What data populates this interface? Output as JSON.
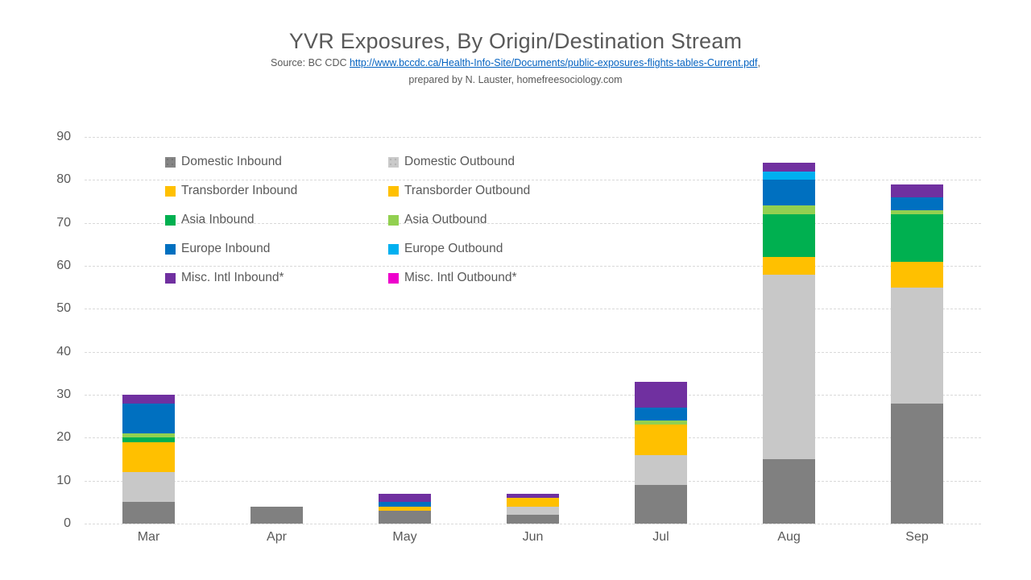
{
  "header": {
    "title": "YVR Exposures, By Origin/Destination Stream",
    "source_prefix": "Source:  BC CDC ",
    "source_link_text": "http://www.bccdc.ca/Health-Info-Site/Documents/public-exposures-flights-tables-Current.pdf",
    "source_suffix": ",",
    "prepared_line": "prepared by N. Lauster, homefreesociology.com"
  },
  "colors": {
    "text_gray": "#595959",
    "link_blue": "#0563C1",
    "gridline": "#D9D9D9",
    "background": "#FFFFFF"
  },
  "chart_data": {
    "type": "bar",
    "stacked": true,
    "title": "YVR Exposures, By Origin/Destination Stream",
    "xlabel": "",
    "ylabel": "",
    "ylim": [
      0,
      90
    ],
    "yticks": [
      0,
      10,
      20,
      30,
      40,
      50,
      60,
      70,
      80,
      90
    ],
    "grid": true,
    "legend_position": "top-left-inside",
    "legend_columns": 2,
    "categories": [
      "Mar",
      "Apr",
      "May",
      "Jun",
      "Jul",
      "Aug",
      "Sep"
    ],
    "series": [
      {
        "name": "Domestic Inbound",
        "color": "#808080",
        "pattern": "dots",
        "values": [
          5,
          4,
          3,
          2,
          9,
          15,
          28
        ]
      },
      {
        "name": "Domestic Outbound",
        "color": "#C8C8C8",
        "pattern": "dots",
        "values": [
          7,
          0,
          0,
          2,
          7,
          43,
          27
        ]
      },
      {
        "name": "Transborder Inbound",
        "color": "#FFC000",
        "pattern": "none",
        "values": [
          7,
          0,
          1,
          2,
          7,
          4,
          6
        ]
      },
      {
        "name": "Transborder Outbound",
        "color": "#FFC000",
        "pattern": "none",
        "values": [
          0,
          0,
          0,
          0,
          0,
          0,
          0
        ]
      },
      {
        "name": "Asia Inbound",
        "color": "#00B050",
        "pattern": "none",
        "values": [
          1,
          0,
          0,
          0,
          0,
          10,
          11
        ]
      },
      {
        "name": "Asia Outbound",
        "color": "#92D050",
        "pattern": "none",
        "values": [
          1,
          0,
          0,
          0,
          1,
          2,
          1
        ]
      },
      {
        "name": "Europe Inbound",
        "color": "#0070C0",
        "pattern": "none",
        "values": [
          7,
          0,
          1,
          0,
          3,
          6,
          3
        ]
      },
      {
        "name": "Europe Outbound",
        "color": "#00B0F0",
        "pattern": "none",
        "values": [
          0,
          0,
          0,
          0,
          0,
          2,
          0
        ]
      },
      {
        "name": "Misc. Intl Inbound*",
        "color": "#7030A0",
        "pattern": "none",
        "values": [
          2,
          0,
          2,
          1,
          6,
          2,
          3
        ]
      },
      {
        "name": "Misc. Intl Outbound*",
        "color": "#EE00CC",
        "pattern": "none",
        "values": [
          0,
          0,
          0,
          0,
          0,
          0,
          0
        ]
      }
    ],
    "totals": {
      "Mar": 30,
      "Apr": 4,
      "May": 7,
      "Jun": 7,
      "Jul": 33,
      "Aug": 84,
      "Sep": 79
    }
  }
}
